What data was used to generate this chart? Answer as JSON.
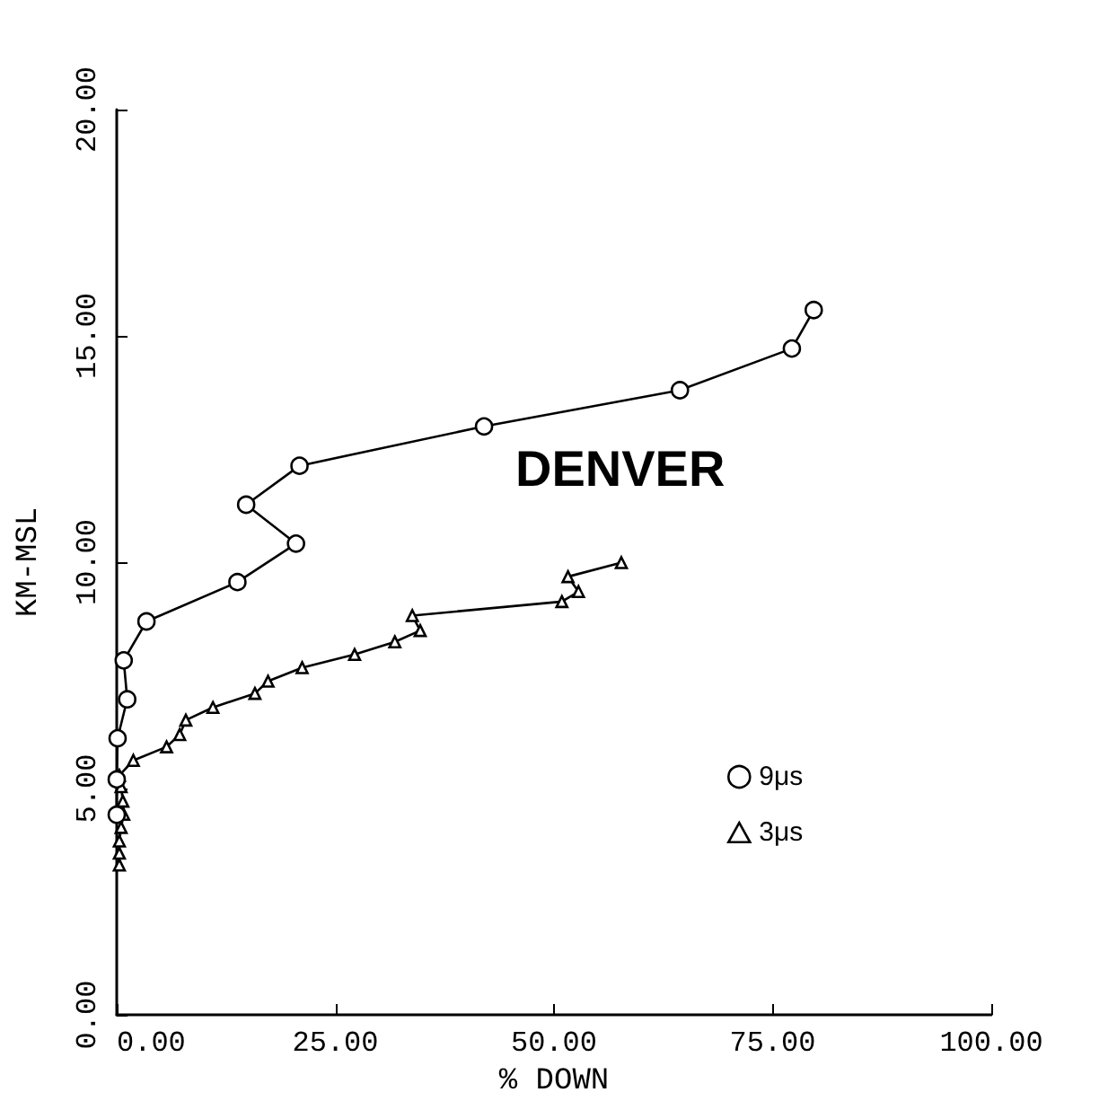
{
  "chart_data": {
    "type": "line",
    "xlabel": "% DOWN",
    "ylabel": "KM-MSL",
    "annotations": [
      "DENVER"
    ],
    "xlim": [
      0,
      100
    ],
    "ylim": [
      0,
      20
    ],
    "xticks": [
      {
        "value": 0,
        "label": "0.00"
      },
      {
        "value": 25,
        "label": "25.00"
      },
      {
        "value": 50,
        "label": "50.00"
      },
      {
        "value": 75,
        "label": "75.00"
      },
      {
        "value": 100,
        "label": "100.00"
      }
    ],
    "yticks": [
      {
        "value": 0,
        "label": "0.00"
      },
      {
        "value": 5,
        "label": "5.00"
      },
      {
        "value": 10,
        "label": "10.00"
      },
      {
        "value": 15,
        "label": "15.00"
      },
      {
        "value": 20,
        "label": "20.00"
      }
    ],
    "grid": false,
    "legend": "bottom right",
    "line_style": "solid",
    "series": [
      {
        "name": "9μs",
        "color": "#000000",
        "marker": "circle",
        "x": [
          0,
          0,
          0.1,
          1.2,
          0.8,
          3.4,
          13.8,
          20.5,
          14.8,
          20.9,
          42.0,
          64.4,
          77.2,
          79.7
        ],
        "values": [
          4.42,
          5.2,
          6.11,
          6.97,
          7.83,
          8.69,
          9.56,
          10.41,
          11.27,
          12.13,
          13.0,
          13.8,
          14.72,
          15.57
        ]
      },
      {
        "name": "3μs",
        "color": "#000000",
        "marker": "triangle",
        "x": [
          0.3,
          0.3,
          0.3,
          0.5,
          0.8,
          0.7,
          0.5,
          0.3,
          1.9,
          5.7,
          7.2,
          7.9,
          11.0,
          15.8,
          17.3,
          21.2,
          27.2,
          31.8,
          34.7,
          33.8,
          50.9,
          52.8,
          51.6,
          57.7
        ],
        "values": [
          3.31,
          3.57,
          3.84,
          4.14,
          4.43,
          4.72,
          5.04,
          5.29,
          5.62,
          5.92,
          6.19,
          6.51,
          6.79,
          7.1,
          7.37,
          7.67,
          7.96,
          8.24,
          8.49,
          8.82,
          9.13,
          9.35,
          9.68,
          9.99
        ]
      }
    ]
  }
}
